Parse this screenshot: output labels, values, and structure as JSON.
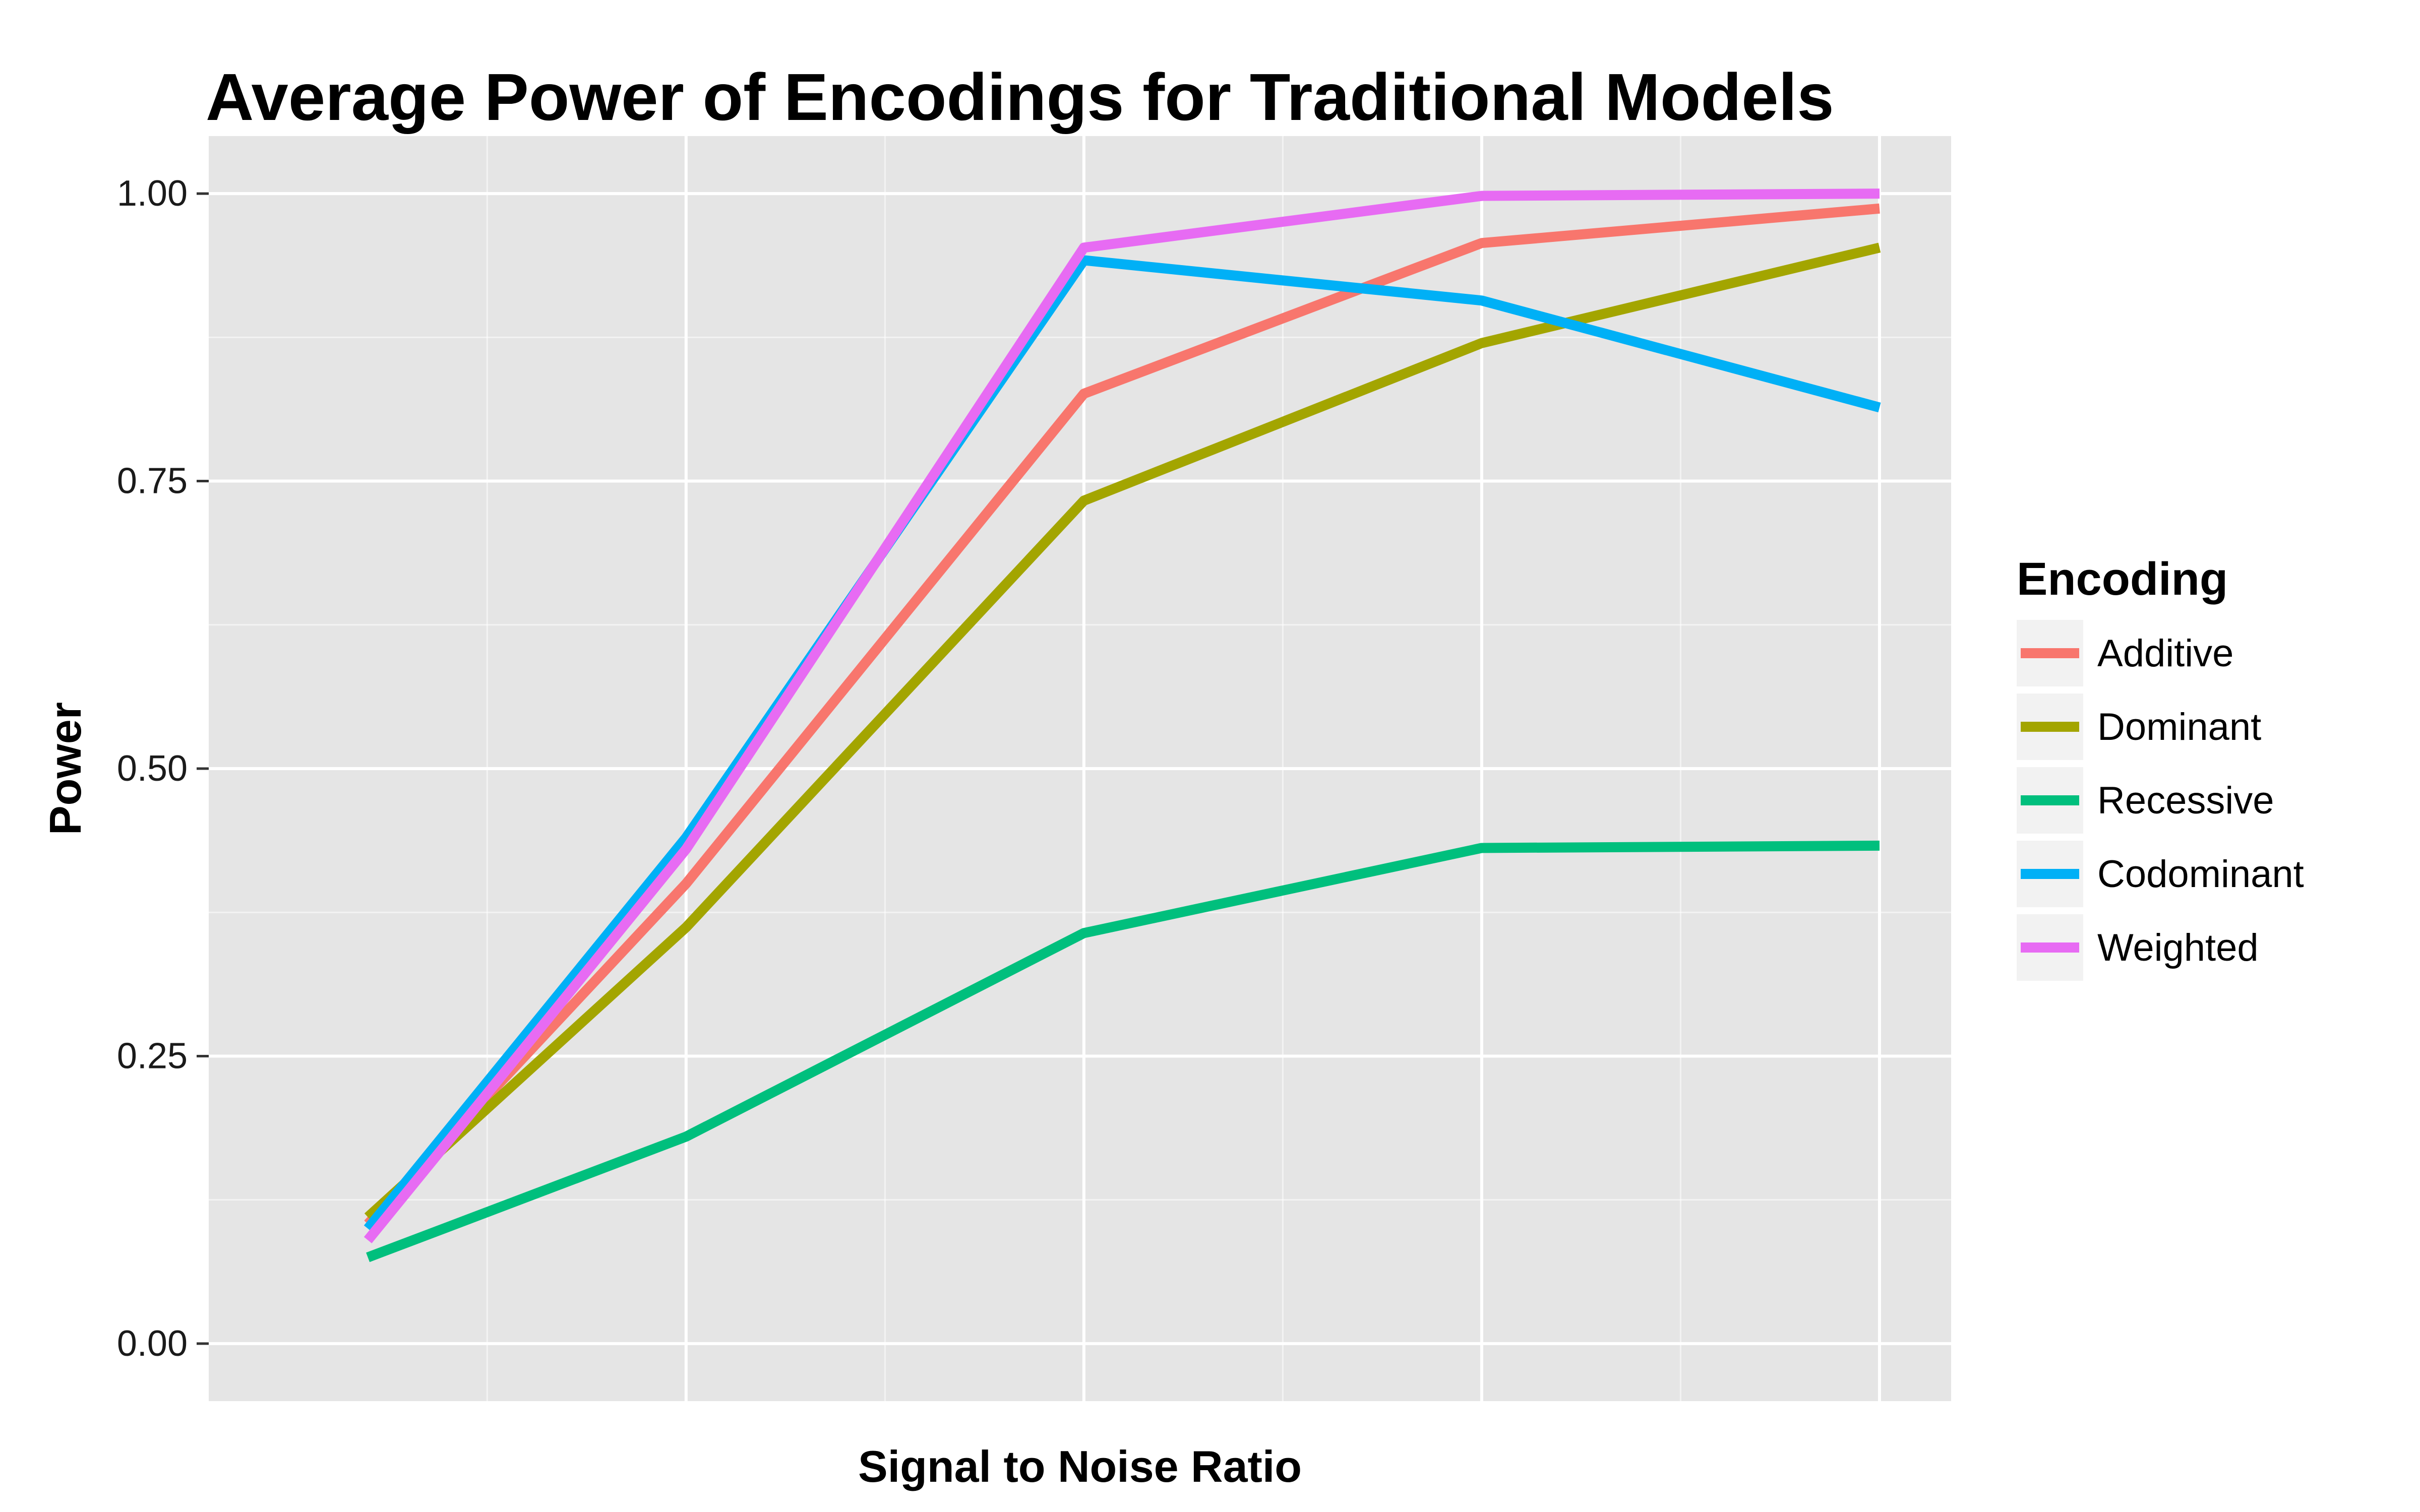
{
  "chart_data": {
    "type": "line",
    "title": "Average Power of Encodings for Traditional Models",
    "xlabel": "Signal to Noise Ratio",
    "ylabel": "Power",
    "x": [
      0.1,
      0.5,
      1.0,
      1.5,
      2.0
    ],
    "xlim": [
      -0.1,
      2.09
    ],
    "ylim": [
      -0.05,
      1.05
    ],
    "yticks": [
      0.0,
      0.25,
      0.5,
      0.75,
      1.0
    ],
    "ytick_labels": [
      "0.00",
      "0.25",
      "0.50",
      "0.75",
      "1.00"
    ],
    "major_x_gridlines": [
      0.5,
      1.0,
      1.5,
      2.0
    ],
    "minor_x_gridlines": [
      0.25,
      0.75,
      1.25,
      1.75
    ],
    "x_tick_labels_shown": false,
    "grid": true,
    "legend": {
      "title": "Encoding",
      "position": "right"
    },
    "colors": {
      "panel_background": "#E5E5E5",
      "grid": "#FFFFFF",
      "legend_key_background": "#F2F2F2",
      "text": "#000000",
      "tick_label": "#1A1A1A"
    },
    "series": [
      {
        "name": "Additive",
        "color": "#F8766D",
        "values": [
          0.104,
          0.4,
          0.826,
          0.957,
          0.987
        ]
      },
      {
        "name": "Dominant",
        "color": "#A3A500",
        "values": [
          0.11,
          0.362,
          0.733,
          0.87,
          0.953
        ]
      },
      {
        "name": "Recessive",
        "color": "#00BF7D",
        "values": [
          0.075,
          0.18,
          0.357,
          0.431,
          0.433
        ]
      },
      {
        "name": "Codominant",
        "color": "#00B0F6",
        "values": [
          0.1,
          0.44,
          0.942,
          0.907,
          0.814
        ]
      },
      {
        "name": "Weighted",
        "color": "#E76BF3",
        "values": [
          0.09,
          0.43,
          0.953,
          0.998,
          1.0
        ]
      }
    ]
  }
}
